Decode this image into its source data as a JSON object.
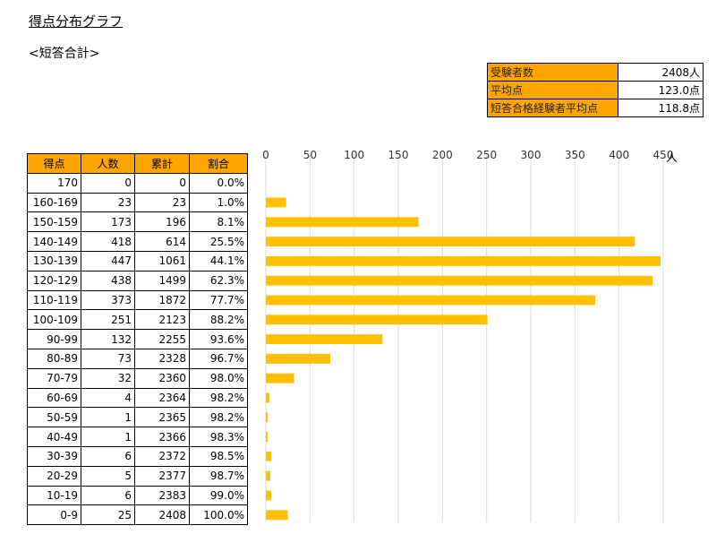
{
  "title": "得点分布グラフ",
  "subtitle": "<短答合計>",
  "summary": [
    {
      "label": "受験者数",
      "value": "2408人"
    },
    {
      "label": "平均点",
      "value": "123.0点"
    },
    {
      "label": "短答合格経験者平均点",
      "value": "118.8点"
    }
  ],
  "table": {
    "headers": [
      "得点",
      "人数",
      "累計",
      "割合"
    ],
    "rows": [
      [
        "170",
        "0",
        "0",
        "0.0%"
      ],
      [
        "160-169",
        "23",
        "23",
        "1.0%"
      ],
      [
        "150-159",
        "173",
        "196",
        "8.1%"
      ],
      [
        "140-149",
        "418",
        "614",
        "25.5%"
      ],
      [
        "130-139",
        "447",
        "1061",
        "44.1%"
      ],
      [
        "120-129",
        "438",
        "1499",
        "62.3%"
      ],
      [
        "110-119",
        "373",
        "1872",
        "77.7%"
      ],
      [
        "100-109",
        "251",
        "2123",
        "88.2%"
      ],
      [
        "90-99",
        "132",
        "2255",
        "93.6%"
      ],
      [
        "80-89",
        "73",
        "2328",
        "96.7%"
      ],
      [
        "70-79",
        "32",
        "2360",
        "98.0%"
      ],
      [
        "60-69",
        "4",
        "2364",
        "98.2%"
      ],
      [
        "50-59",
        "1",
        "2365",
        "98.2%"
      ],
      [
        "40-49",
        "1",
        "2366",
        "98.3%"
      ],
      [
        "30-39",
        "6",
        "2372",
        "98.5%"
      ],
      [
        "20-29",
        "5",
        "2377",
        "98.7%"
      ],
      [
        "10-19",
        "6",
        "2383",
        "99.0%"
      ],
      [
        "0-9",
        "25",
        "2408",
        "100.0%"
      ]
    ]
  },
  "colors": {
    "header_bg": "#ffa500",
    "bar": "#ffc000",
    "grid": "#d9d9d9"
  },
  "chart_data": {
    "type": "bar",
    "orientation": "horizontal",
    "title": "",
    "xlabel": "人",
    "ylabel": "",
    "categories": [
      "170",
      "160-169",
      "150-159",
      "140-149",
      "130-139",
      "120-129",
      "110-119",
      "100-109",
      "90-99",
      "80-89",
      "70-79",
      "60-69",
      "50-59",
      "40-49",
      "30-39",
      "20-29",
      "10-19",
      "0-9"
    ],
    "values": [
      0,
      23,
      173,
      418,
      447,
      438,
      373,
      251,
      132,
      73,
      32,
      4,
      1,
      1,
      6,
      5,
      6,
      25
    ],
    "xlim": [
      0,
      450
    ],
    "xticks": [
      "0",
      "50",
      "100",
      "150",
      "200",
      "250",
      "300",
      "350",
      "400",
      "450"
    ],
    "tick_values": [
      0,
      50,
      100,
      150,
      200,
      250,
      300,
      350,
      400,
      450
    ],
    "unit_label": "人",
    "grid": true,
    "axis_position": "top"
  }
}
